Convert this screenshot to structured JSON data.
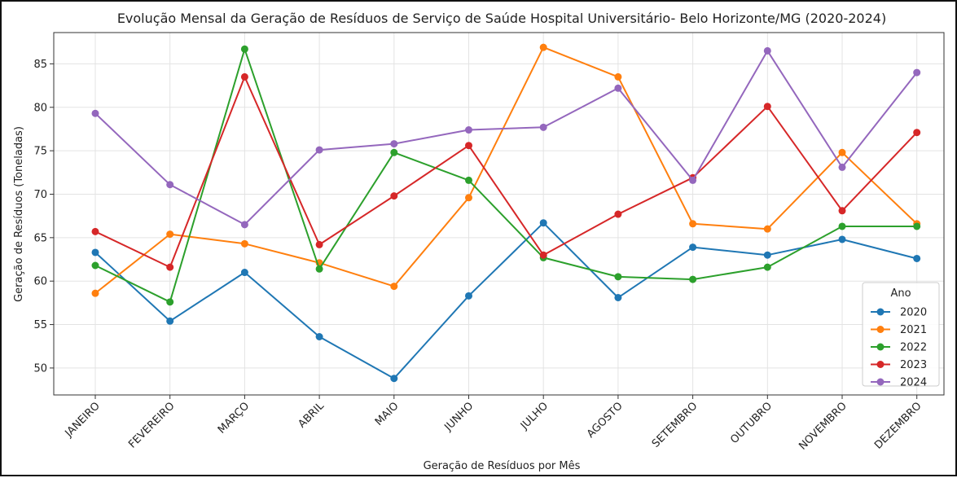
{
  "chart_data": {
    "type": "line",
    "title": "Evolução Mensal da Geração de Resíduos de Serviço de Saúde Hospital Universitário- Belo Horizonte/MG (2020-2024)",
    "xlabel": "Geração de Resíduos por Mês",
    "ylabel": "Geração de Resíduos (Toneladas)",
    "categories": [
      "JANEIRO",
      "FEVEREIRO",
      "MARÇO",
      "ABRIL",
      "MAIO",
      "JUNHO",
      "JULHO",
      "AGOSTO",
      "SETEMBRO",
      "OUTUBRO",
      "NOVEMBRO",
      "DEZEMBRO"
    ],
    "ylim": [
      46.9,
      88.6
    ],
    "yticks": [
      50,
      55,
      60,
      65,
      70,
      75,
      80,
      85
    ],
    "grid": true,
    "legend": {
      "title": "Ano",
      "placement": "lower-right"
    },
    "series": [
      {
        "name": "2020",
        "color": "#1f77b4",
        "values": [
          63.3,
          55.4,
          61.0,
          53.6,
          48.8,
          58.3,
          66.7,
          58.1,
          63.9,
          63.0,
          64.8,
          62.6
        ]
      },
      {
        "name": "2021",
        "color": "#ff7f0e",
        "values": [
          58.6,
          65.4,
          64.3,
          62.1,
          59.4,
          69.6,
          86.9,
          83.5,
          66.6,
          66.0,
          74.8,
          66.6
        ]
      },
      {
        "name": "2022",
        "color": "#2ca02c",
        "values": [
          61.8,
          57.6,
          86.7,
          61.4,
          74.8,
          71.6,
          62.7,
          60.5,
          60.2,
          61.6,
          66.3,
          66.3
        ]
      },
      {
        "name": "2023",
        "color": "#d62728",
        "values": [
          65.7,
          61.6,
          83.5,
          64.2,
          69.8,
          75.6,
          63.0,
          67.7,
          71.9,
          80.1,
          68.1,
          77.1
        ]
      },
      {
        "name": "2024",
        "color": "#9467bd",
        "values": [
          79.3,
          71.1,
          66.5,
          75.1,
          75.8,
          77.4,
          77.7,
          82.2,
          71.6,
          86.5,
          73.1,
          84.0
        ]
      }
    ]
  }
}
